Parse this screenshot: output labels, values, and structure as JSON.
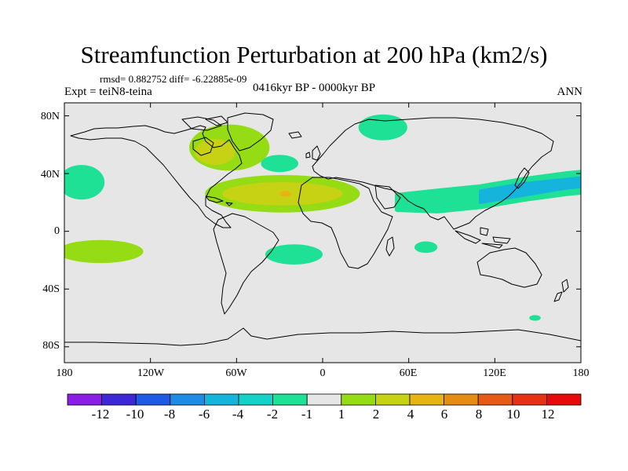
{
  "title": "Streamfunction Perturbation at 200 hPa (km2/s)",
  "stats": "rmsd= 0.882752 diff= -6.22885e-09",
  "experiment": "Expt = teiN8-teina",
  "period": "0416kyr BP - 0000kyr BP",
  "season": "ANN",
  "lat_labels": [
    "80N",
    "40N",
    "0",
    "40S",
    "80S"
  ],
  "lon_labels": [
    "180",
    "120W",
    "60W",
    "0",
    "60E",
    "120E",
    "180"
  ],
  "colorbar": {
    "labels": [
      "-12",
      "-10",
      "-8",
      "-6",
      "-4",
      "-2",
      "-1",
      "1",
      "2",
      "4",
      "6",
      "8",
      "10",
      "12"
    ],
    "colors": [
      "#8a1ee6",
      "#3c28d6",
      "#1e5ae6",
      "#1e8ce6",
      "#14b4dc",
      "#14d2c8",
      "#1ee196",
      "#e6e6e6",
      "#96dc14",
      "#c8d214",
      "#e6b414",
      "#e68c14",
      "#e65a14",
      "#e63214",
      "#e60a0a"
    ]
  },
  "colors": {
    "land_bg": "#e6e6e6",
    "coast": "#000000",
    "green_pos1": "#96dc14",
    "yellowgreen_pos2": "#c8d214",
    "orange_pos4": "#e6b414",
    "teal_neg1": "#1ee196",
    "cyan_neg2": "#14d2c8",
    "lightblue_neg4": "#14b4dc"
  },
  "anomaly_blobs": [
    {
      "region": "NE North America / Greenland",
      "sign": "+",
      "lon": -65,
      "lat": 58,
      "lonR": 28,
      "latR": 16,
      "level": "green_pos1"
    },
    {
      "region": "Hudson Bay",
      "sign": "+",
      "lon": -75,
      "lat": 55,
      "lonR": 14,
      "latR": 9,
      "level": "yellowgreen_pos2"
    },
    {
      "region": "North Atlantic subtropics",
      "sign": "+",
      "lon": -28,
      "lat": 26,
      "lonR": 54,
      "latR": 13,
      "level": "green_pos1"
    },
    {
      "region": "North Atlantic subtropics core",
      "sign": "+",
      "lon": -28,
      "lat": 26,
      "lonR": 42,
      "latR": 8,
      "level": "yellowgreen_pos2"
    },
    {
      "region": "North Atlantic center",
      "sign": "+",
      "lon": -26,
      "lat": 26,
      "lonR": 4,
      "latR": 2,
      "level": "orange_pos4"
    },
    {
      "region": "Central Pacific south",
      "sign": "+",
      "lon": -155,
      "lat": -14,
      "lonR": 30,
      "latR": 8,
      "level": "green_pos1"
    },
    {
      "region": "North Atlantic mid-latitudes",
      "sign": "-",
      "lon": -30,
      "lat": 47,
      "lonR": 13,
      "latR": 6,
      "level": "teal_neg1"
    },
    {
      "region": "Barents Sea",
      "sign": "-",
      "lon": 42,
      "lat": 72,
      "lonR": 17,
      "latR": 9,
      "level": "teal_neg1"
    },
    {
      "region": "Eastern North Pacific",
      "sign": "-",
      "lon": -168,
      "lat": 34,
      "lonR": 16,
      "latR": 12,
      "level": "teal_neg1"
    },
    {
      "region": "South Atlantic",
      "sign": "-",
      "lon": -20,
      "lat": -16,
      "lonR": 20,
      "latR": 7,
      "level": "teal_neg1"
    },
    {
      "region": "Southern Indian Ocean",
      "sign": "-",
      "lon": 72,
      "lat": -11,
      "lonR": 8,
      "latR": 4,
      "level": "teal_neg1"
    },
    {
      "region": "Southwest Pacific",
      "sign": "-",
      "lon": 148,
      "lat": -60,
      "lonR": 4,
      "latR": 2,
      "level": "teal_neg1"
    }
  ],
  "jet_band": {
    "region": "Subtropical Asian / Pacific jet",
    "sign": "-",
    "center_line": [
      [
        52,
        20
      ],
      [
        80,
        21
      ],
      [
        110,
        24
      ],
      [
        140,
        29
      ],
      [
        170,
        33
      ],
      [
        180,
        34
      ]
    ],
    "outer_half_width_deg": [
      5,
      7,
      7,
      7,
      7,
      7
    ],
    "inner_half_width_deg": [
      0,
      0,
      4,
      4,
      3,
      3
    ],
    "outer_level": "teal_neg1",
    "inner_level": "lightblue_neg4"
  }
}
